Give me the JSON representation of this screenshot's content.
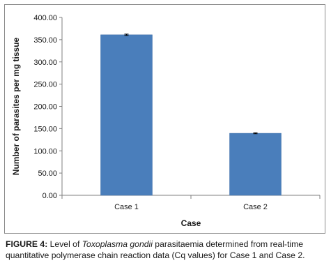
{
  "chart_data": {
    "type": "bar",
    "categories": [
      "Case 1",
      "Case 2"
    ],
    "values": [
      361.0,
      139.5
    ],
    "error": [
      1.5,
      1.0
    ],
    "xlabel": "Case",
    "ylabel": "Number of parasites per mg tissue",
    "ylim": [
      0,
      400
    ],
    "yticks": [
      "0.00",
      "50.00",
      "100.00",
      "150.00",
      "200.00",
      "250.00",
      "300.00",
      "350.00",
      "400.00"
    ],
    "bar_color": "#4a7ebb",
    "grid": false,
    "legend": "none"
  },
  "caption": {
    "lead": "FIGURE 4:",
    "text_before": " Level of ",
    "species": "Toxoplasma gondii",
    "text_after": " parasitaemia determined from real-time quantitative polymerase chain reaction data (Cq values) for Case 1 and Case 2."
  }
}
